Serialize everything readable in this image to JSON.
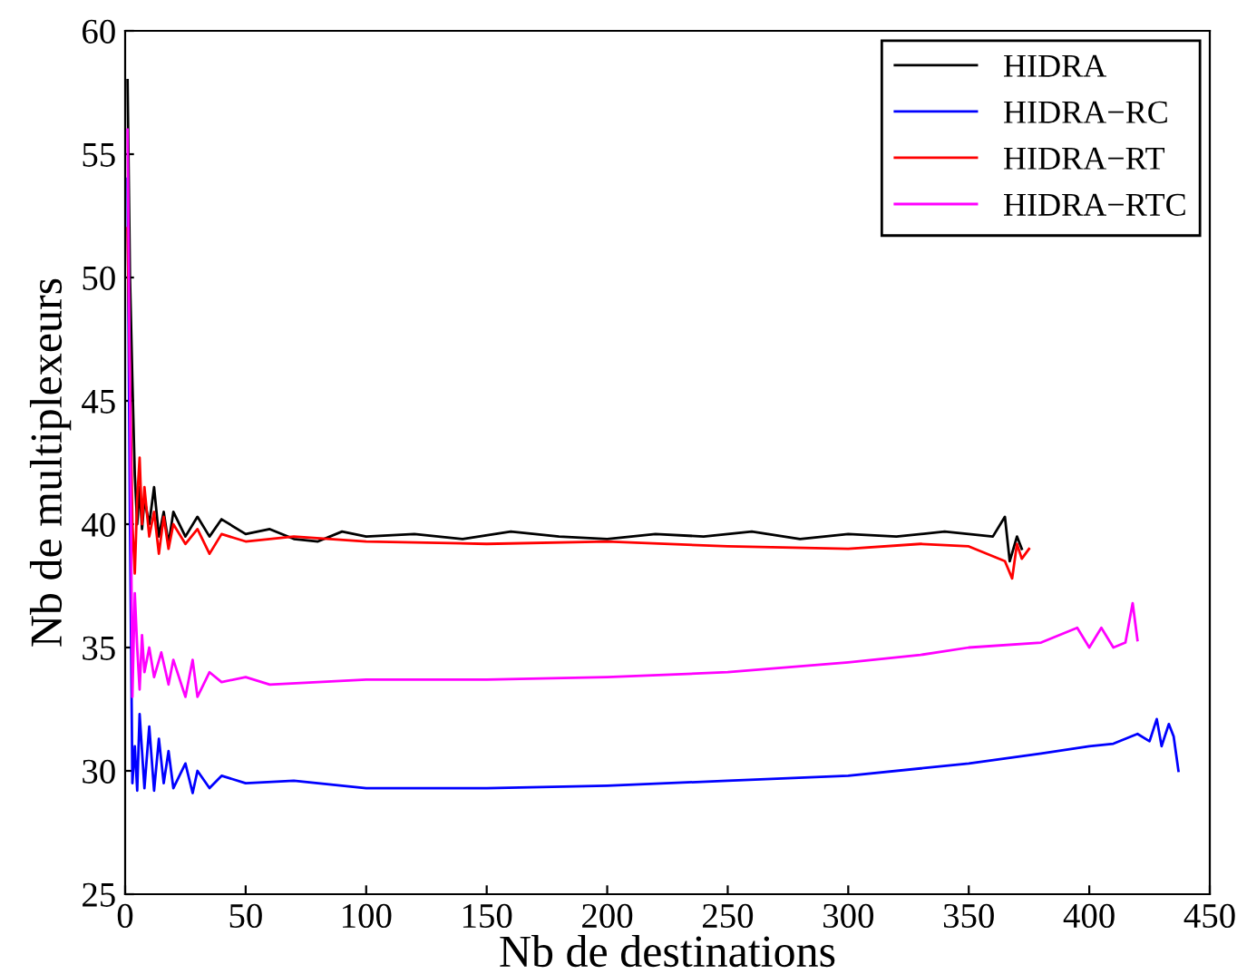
{
  "chart_data": {
    "type": "line",
    "xlabel": "Nb de destinations",
    "ylabel": "Nb de multiplexeurs",
    "xlim": [
      0,
      450
    ],
    "ylim": [
      25,
      60
    ],
    "xticks": [
      0,
      50,
      100,
      150,
      200,
      250,
      300,
      350,
      400,
      450
    ],
    "yticks": [
      25,
      30,
      35,
      40,
      45,
      50,
      55,
      60
    ],
    "grid": false,
    "legend": "top right",
    "marker": "none",
    "line_style": "solid",
    "series": [
      {
        "name": "HIDRA",
        "color": "#000000",
        "x": [
          1,
          2,
          3,
          4,
          5,
          6,
          7,
          8,
          10,
          12,
          14,
          16,
          18,
          20,
          25,
          30,
          35,
          40,
          50,
          60,
          70,
          80,
          90,
          100,
          120,
          140,
          160,
          180,
          200,
          220,
          240,
          260,
          280,
          300,
          320,
          340,
          350,
          360,
          365,
          367,
          370,
          372
        ],
        "values": [
          58,
          50,
          45.8,
          42,
          40,
          41.5,
          39.8,
          41,
          40,
          41.5,
          39.5,
          40.5,
          39.2,
          40.5,
          39.5,
          40.3,
          39.5,
          40.2,
          39.6,
          39.8,
          39.4,
          39.3,
          39.7,
          39.5,
          39.6,
          39.4,
          39.7,
          39.5,
          39.4,
          39.6,
          39.5,
          39.7,
          39.4,
          39.6,
          39.5,
          39.7,
          39.6,
          39.5,
          40.3,
          38.5,
          39.5,
          39.0
        ]
      },
      {
        "name": "HIDRA−RC",
        "color": "#0000ff",
        "x": [
          1,
          2,
          3,
          4,
          5,
          6,
          8,
          10,
          12,
          14,
          16,
          18,
          20,
          25,
          28,
          30,
          35,
          40,
          50,
          70,
          100,
          150,
          200,
          250,
          300,
          350,
          380,
          400,
          410,
          420,
          425,
          428,
          430,
          433,
          435,
          437
        ],
        "values": [
          54,
          40,
          29.5,
          31,
          29.2,
          32.3,
          29.3,
          31.8,
          29.2,
          31.3,
          29.5,
          30.8,
          29.3,
          30.3,
          29.1,
          30,
          29.3,
          29.8,
          29.5,
          29.6,
          29.3,
          29.3,
          29.4,
          29.6,
          29.8,
          30.3,
          30.7,
          31,
          31.1,
          31.5,
          31.2,
          32.1,
          31,
          31.9,
          31.4,
          30
        ]
      },
      {
        "name": "HIDRA−RT",
        "color": "#ff0000",
        "x": [
          1,
          2,
          3,
          4,
          5,
          6,
          7,
          8,
          10,
          12,
          14,
          16,
          18,
          20,
          25,
          30,
          35,
          40,
          50,
          70,
          100,
          150,
          200,
          250,
          300,
          330,
          350,
          365,
          368,
          370,
          372,
          375
        ],
        "values": [
          52,
          46,
          40,
          38,
          41,
          42.7,
          40,
          41.5,
          39.5,
          40.5,
          38.8,
          40.3,
          39,
          40,
          39.2,
          39.8,
          38.8,
          39.6,
          39.3,
          39.5,
          39.3,
          39.2,
          39.3,
          39.1,
          39.0,
          39.2,
          39.1,
          38.5,
          37.8,
          39.2,
          38.6,
          39.0
        ]
      },
      {
        "name": "HIDRA−RTC",
        "color": "#ff00ff",
        "x": [
          1,
          2,
          3,
          4,
          5,
          6,
          7,
          8,
          10,
          12,
          15,
          18,
          20,
          25,
          28,
          30,
          35,
          40,
          50,
          60,
          80,
          100,
          150,
          200,
          250,
          300,
          330,
          350,
          380,
          395,
          400,
          405,
          410,
          415,
          418,
          420
        ],
        "values": [
          56,
          45,
          33,
          37.2,
          35,
          33.3,
          35.5,
          34,
          35,
          33.8,
          34.8,
          33.5,
          34.5,
          33,
          34.5,
          33,
          34,
          33.6,
          33.8,
          33.5,
          33.6,
          33.7,
          33.7,
          33.8,
          34,
          34.4,
          34.7,
          35,
          35.2,
          35.8,
          35,
          35.8,
          35,
          35.2,
          36.8,
          35.3
        ]
      }
    ]
  }
}
